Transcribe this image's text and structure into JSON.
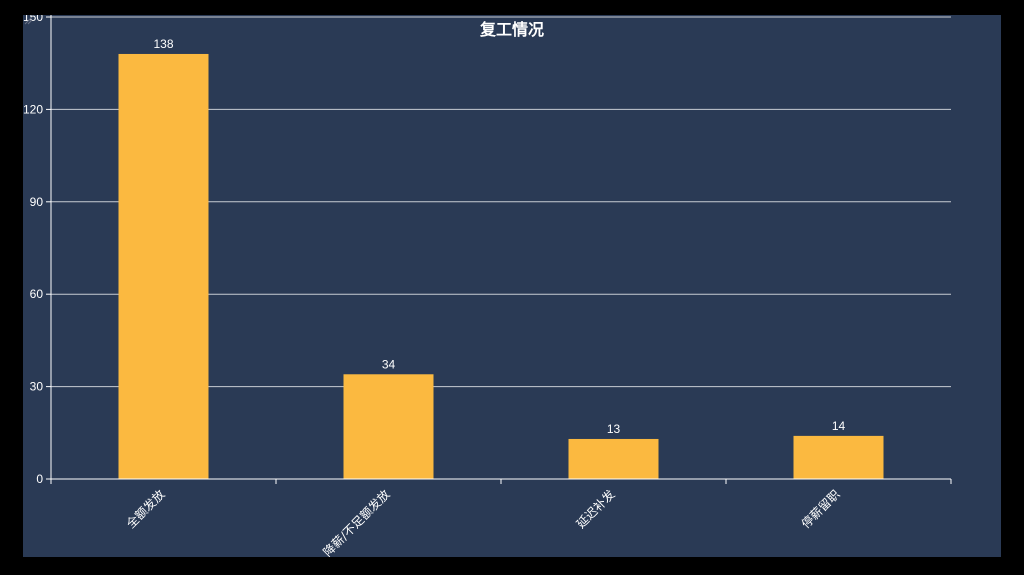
{
  "chart_data": {
    "type": "bar",
    "title": "复工情况",
    "xlabel": "",
    "ylabel": "",
    "categories": [
      "全额发放",
      "降薪/不足额发放",
      "延迟补发",
      "停薪留职"
    ],
    "values": [
      138,
      34,
      13,
      14
    ],
    "ylim": [
      0,
      150
    ],
    "yticks": [
      0,
      30,
      60,
      90,
      120,
      150
    ],
    "grid": true,
    "legend": "none",
    "bar_color": "#fbb940",
    "background_color": "#2a3a55",
    "axis_color": "#ffffff",
    "grid_color": "#c8ccd4"
  }
}
